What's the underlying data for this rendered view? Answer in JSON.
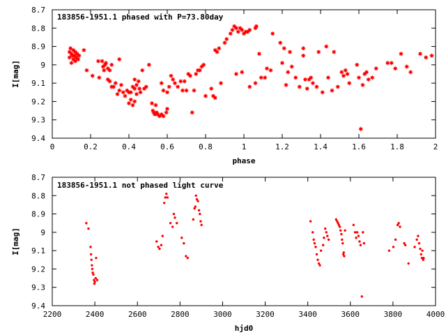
{
  "chart_data": [
    {
      "type": "scatter",
      "title": "183856-1951.1 phased with P=73.80day",
      "xlabel": "phase",
      "ylabel": "I[mag]",
      "xlim": [
        0,
        2
      ],
      "ylim": [
        8.7,
        9.4
      ],
      "y_inverted": true,
      "grid": false,
      "marker": "filled star",
      "color": "#ff0000",
      "xticks": [
        "0",
        "0.2",
        "0.4",
        "0.6",
        "0.8",
        "1",
        "1.2",
        "1.4",
        "1.6",
        "1.8",
        "2"
      ],
      "yticks": [
        "8.7",
        "8.8",
        "8.9",
        "9",
        "9.1",
        "9.2",
        "9.3",
        "9.4"
      ],
      "points": [
        [
          0.09,
          8.93
        ],
        [
          0.09,
          8.96
        ],
        [
          0.095,
          8.91
        ],
        [
          0.1,
          8.99
        ],
        [
          0.1,
          8.94
        ],
        [
          0.105,
          8.95
        ],
        [
          0.11,
          8.92
        ],
        [
          0.11,
          8.97
        ],
        [
          0.115,
          8.95
        ],
        [
          0.12,
          8.93
        ],
        [
          0.12,
          8.98
        ],
        [
          0.125,
          8.96
        ],
        [
          0.13,
          8.94
        ],
        [
          0.135,
          8.97
        ],
        [
          0.14,
          8.95
        ],
        [
          0.165,
          8.92
        ],
        [
          0.18,
          9.03
        ],
        [
          0.21,
          9.06
        ],
        [
          0.24,
          8.98
        ],
        [
          0.245,
          9.07
        ],
        [
          0.26,
          8.98
        ],
        [
          0.265,
          9.01
        ],
        [
          0.27,
          9.03
        ],
        [
          0.275,
          9.0
        ],
        [
          0.28,
          8.99
        ],
        [
          0.29,
          9.02
        ],
        [
          0.3,
          9.03
        ],
        [
          0.31,
          9.0
        ],
        [
          0.29,
          9.08
        ],
        [
          0.3,
          9.09
        ],
        [
          0.31,
          9.12
        ],
        [
          0.32,
          9.12
        ],
        [
          0.33,
          9.1
        ],
        [
          0.34,
          9.16
        ],
        [
          0.35,
          9.14
        ],
        [
          0.36,
          9.11
        ],
        [
          0.37,
          9.15
        ],
        [
          0.38,
          9.17
        ],
        [
          0.39,
          9.14
        ],
        [
          0.4,
          9.15
        ],
        [
          0.35,
          8.97
        ],
        [
          0.41,
          9.15
        ],
        [
          0.42,
          9.12
        ],
        [
          0.43,
          9.13
        ],
        [
          0.44,
          9.16
        ],
        [
          0.4,
          9.21
        ],
        [
          0.41,
          9.19
        ],
        [
          0.42,
          9.22
        ],
        [
          0.43,
          9.2
        ],
        [
          0.43,
          9.08
        ],
        [
          0.44,
          9.11
        ],
        [
          0.45,
          9.09
        ],
        [
          0.455,
          9.13
        ],
        [
          0.46,
          9.15
        ],
        [
          0.47,
          9.03
        ],
        [
          0.48,
          9.13
        ],
        [
          0.49,
          9.12
        ],
        [
          0.505,
          9.0
        ],
        [
          0.52,
          9.21
        ],
        [
          0.525,
          9.25
        ],
        [
          0.53,
          9.26
        ],
        [
          0.535,
          9.27
        ],
        [
          0.54,
          9.22
        ],
        [
          0.545,
          9.26
        ],
        [
          0.55,
          9.27
        ],
        [
          0.56,
          9.28
        ],
        [
          0.57,
          9.27
        ],
        [
          0.58,
          9.28
        ],
        [
          0.595,
          9.26
        ],
        [
          0.6,
          9.24
        ],
        [
          0.57,
          9.1
        ],
        [
          0.58,
          9.14
        ],
        [
          0.6,
          9.15
        ],
        [
          0.61,
          9.12
        ],
        [
          0.62,
          9.06
        ],
        [
          0.63,
          9.08
        ],
        [
          0.64,
          9.1
        ],
        [
          0.655,
          9.12
        ],
        [
          0.67,
          9.09
        ],
        [
          0.68,
          9.14
        ],
        [
          0.69,
          9.09
        ],
        [
          0.7,
          9.14
        ],
        [
          0.71,
          9.05
        ],
        [
          0.72,
          9.06
        ],
        [
          0.73,
          9.26
        ],
        [
          0.74,
          9.14
        ],
        [
          0.75,
          9.05
        ],
        [
          0.76,
          9.03
        ],
        [
          0.77,
          9.03
        ],
        [
          0.78,
          9.01
        ],
        [
          0.79,
          9.0
        ],
        [
          0.8,
          9.17
        ],
        [
          0.83,
          9.13
        ],
        [
          0.84,
          9.17
        ],
        [
          0.85,
          9.18
        ],
        [
          0.85,
          8.92
        ],
        [
          0.86,
          8.93
        ],
        [
          0.87,
          8.91
        ],
        [
          0.88,
          9.1
        ],
        [
          0.9,
          8.88
        ],
        [
          0.91,
          8.86
        ],
        [
          0.93,
          8.83
        ],
        [
          0.94,
          8.81
        ],
        [
          0.95,
          8.79
        ],
        [
          0.96,
          8.8
        ],
        [
          0.97,
          8.82
        ],
        [
          0.98,
          8.8
        ],
        [
          0.99,
          8.81
        ],
        [
          1.0,
          8.83
        ],
        [
          1.01,
          8.82
        ],
        [
          1.02,
          8.82
        ],
        [
          1.03,
          8.81
        ],
        [
          1.06,
          8.8
        ],
        [
          1.065,
          8.79
        ],
        [
          0.96,
          9.05
        ],
        [
          0.99,
          9.04
        ],
        [
          1.03,
          9.12
        ],
        [
          1.06,
          9.1
        ],
        [
          1.08,
          8.94
        ],
        [
          1.09,
          9.07
        ],
        [
          1.11,
          9.07
        ],
        [
          1.12,
          9.02
        ],
        [
          1.14,
          9.03
        ],
        [
          1.15,
          8.83
        ],
        [
          1.19,
          8.88
        ],
        [
          1.2,
          8.99
        ],
        [
          1.21,
          8.91
        ],
        [
          1.23,
          9.04
        ],
        [
          1.22,
          9.11
        ],
        [
          1.24,
          8.93
        ],
        [
          1.25,
          9.01
        ],
        [
          1.27,
          9.07
        ],
        [
          1.29,
          9.12
        ],
        [
          1.31,
          8.91
        ],
        [
          1.31,
          8.95
        ],
        [
          1.32,
          9.08
        ],
        [
          1.33,
          9.13
        ],
        [
          1.34,
          9.08
        ],
        [
          1.35,
          9.07
        ],
        [
          1.36,
          9.1
        ],
        [
          1.38,
          9.12
        ],
        [
          1.39,
          8.93
        ],
        [
          1.41,
          9.15
        ],
        [
          1.43,
          8.9
        ],
        [
          1.44,
          9.07
        ],
        [
          1.46,
          9.14
        ],
        [
          1.47,
          8.93
        ],
        [
          1.49,
          9.12
        ],
        [
          1.51,
          9.04
        ],
        [
          1.52,
          9.06
        ],
        [
          1.53,
          9.03
        ],
        [
          1.54,
          9.05
        ],
        [
          1.55,
          9.1
        ],
        [
          1.59,
          9.0
        ],
        [
          1.6,
          9.07
        ],
        [
          1.61,
          9.35
        ],
        [
          1.62,
          9.11
        ],
        [
          1.63,
          9.05
        ],
        [
          1.64,
          9.04
        ],
        [
          1.65,
          9.08
        ],
        [
          1.67,
          9.07
        ],
        [
          1.69,
          9.02
        ],
        [
          1.75,
          8.99
        ],
        [
          1.77,
          8.99
        ],
        [
          1.79,
          9.02
        ],
        [
          1.82,
          8.94
        ],
        [
          1.85,
          9.01
        ],
        [
          1.87,
          9.04
        ],
        [
          1.92,
          8.94
        ],
        [
          1.95,
          8.96
        ],
        [
          1.98,
          8.95
        ]
      ]
    },
    {
      "type": "scatter",
      "title": "183856-1951.1 not phased light curve",
      "xlabel": "hjd0",
      "ylabel": "I[mag]",
      "xlim": [
        2200,
        4000
      ],
      "ylim": [
        8.7,
        9.4
      ],
      "y_inverted": true,
      "grid": false,
      "marker": "dot",
      "color": "#ff0000",
      "xticks": [
        "2200",
        "2400",
        "2600",
        "2800",
        "3000",
        "3200",
        "3400",
        "3600",
        "3800",
        "4000"
      ],
      "yticks": [
        "8.7",
        "8.8",
        "8.9",
        "9",
        "9.1",
        "9.2",
        "9.3",
        "9.4"
      ],
      "points": [
        [
          2360,
          8.95
        ],
        [
          2370,
          8.98
        ],
        [
          2380,
          9.08
        ],
        [
          2382,
          9.12
        ],
        [
          2384,
          9.15
        ],
        [
          2386,
          9.18
        ],
        [
          2388,
          9.2
        ],
        [
          2390,
          9.22
        ],
        [
          2393,
          9.23
        ],
        [
          2396,
          9.26
        ],
        [
          2398,
          9.28
        ],
        [
          2400,
          9.27
        ],
        [
          2404,
          9.25
        ],
        [
          2406,
          9.14
        ],
        [
          2411,
          9.26
        ],
        [
          2690,
          9.05
        ],
        [
          2698,
          9.08
        ],
        [
          2704,
          9.09
        ],
        [
          2712,
          9.07
        ],
        [
          2718,
          9.02
        ],
        [
          2726,
          8.84
        ],
        [
          2731,
          8.81
        ],
        [
          2736,
          8.79
        ],
        [
          2741,
          8.81
        ],
        [
          2755,
          8.95
        ],
        [
          2765,
          8.97
        ],
        [
          2771,
          8.9
        ],
        [
          2776,
          8.92
        ],
        [
          2785,
          8.95
        ],
        [
          2808,
          9.03
        ],
        [
          2818,
          9.06
        ],
        [
          2828,
          9.13
        ],
        [
          2836,
          9.14
        ],
        [
          2862,
          8.93
        ],
        [
          2868,
          8.87
        ],
        [
          2872,
          8.86
        ],
        [
          2875,
          8.8
        ],
        [
          2879,
          8.82
        ],
        [
          2884,
          8.83
        ],
        [
          2889,
          8.88
        ],
        [
          2893,
          8.9
        ],
        [
          2897,
          8.94
        ],
        [
          2901,
          8.96
        ],
        [
          3413,
          8.94
        ],
        [
          3423,
          9.0
        ],
        [
          3428,
          9.04
        ],
        [
          3432,
          9.06
        ],
        [
          3437,
          9.08
        ],
        [
          3442,
          9.12
        ],
        [
          3447,
          9.15
        ],
        [
          3452,
          9.17
        ],
        [
          3457,
          9.18
        ],
        [
          3462,
          9.1
        ],
        [
          3472,
          9.07
        ],
        [
          3476,
          9.03
        ],
        [
          3482,
          8.98
        ],
        [
          3487,
          9.0
        ],
        [
          3492,
          9.02
        ],
        [
          3498,
          9.04
        ],
        [
          3533,
          8.93
        ],
        [
          3538,
          8.94
        ],
        [
          3542,
          8.95
        ],
        [
          3546,
          8.96
        ],
        [
          3550,
          8.97
        ],
        [
          3554,
          8.99
        ],
        [
          3558,
          9.01
        ],
        [
          3561,
          9.04
        ],
        [
          3564,
          9.06
        ],
        [
          3567,
          9.12
        ],
        [
          3569,
          9.11
        ],
        [
          3571,
          9.13
        ],
        [
          3575,
          8.99
        ],
        [
          3615,
          8.96
        ],
        [
          3622,
          9.0
        ],
        [
          3627,
          9.03
        ],
        [
          3632,
          9.0
        ],
        [
          3638,
          9.02
        ],
        [
          3643,
          9.05
        ],
        [
          3648,
          9.07
        ],
        [
          3654,
          9.35
        ],
        [
          3659,
          9.0
        ],
        [
          3664,
          9.06
        ],
        [
          3782,
          9.1
        ],
        [
          3802,
          9.08
        ],
        [
          3812,
          9.04
        ],
        [
          3822,
          8.96
        ],
        [
          3827,
          8.95
        ],
        [
          3833,
          8.97
        ],
        [
          3853,
          9.06
        ],
        [
          3858,
          9.07
        ],
        [
          3873,
          9.17
        ],
        [
          3902,
          9.08
        ],
        [
          3912,
          9.04
        ],
        [
          3918,
          9.02
        ],
        [
          3923,
          9.06
        ],
        [
          3928,
          9.09
        ],
        [
          3932,
          9.12
        ],
        [
          3936,
          9.14
        ],
        [
          3938,
          9.1
        ],
        [
          3942,
          9.15
        ],
        [
          3944,
          9.14
        ]
      ]
    }
  ]
}
